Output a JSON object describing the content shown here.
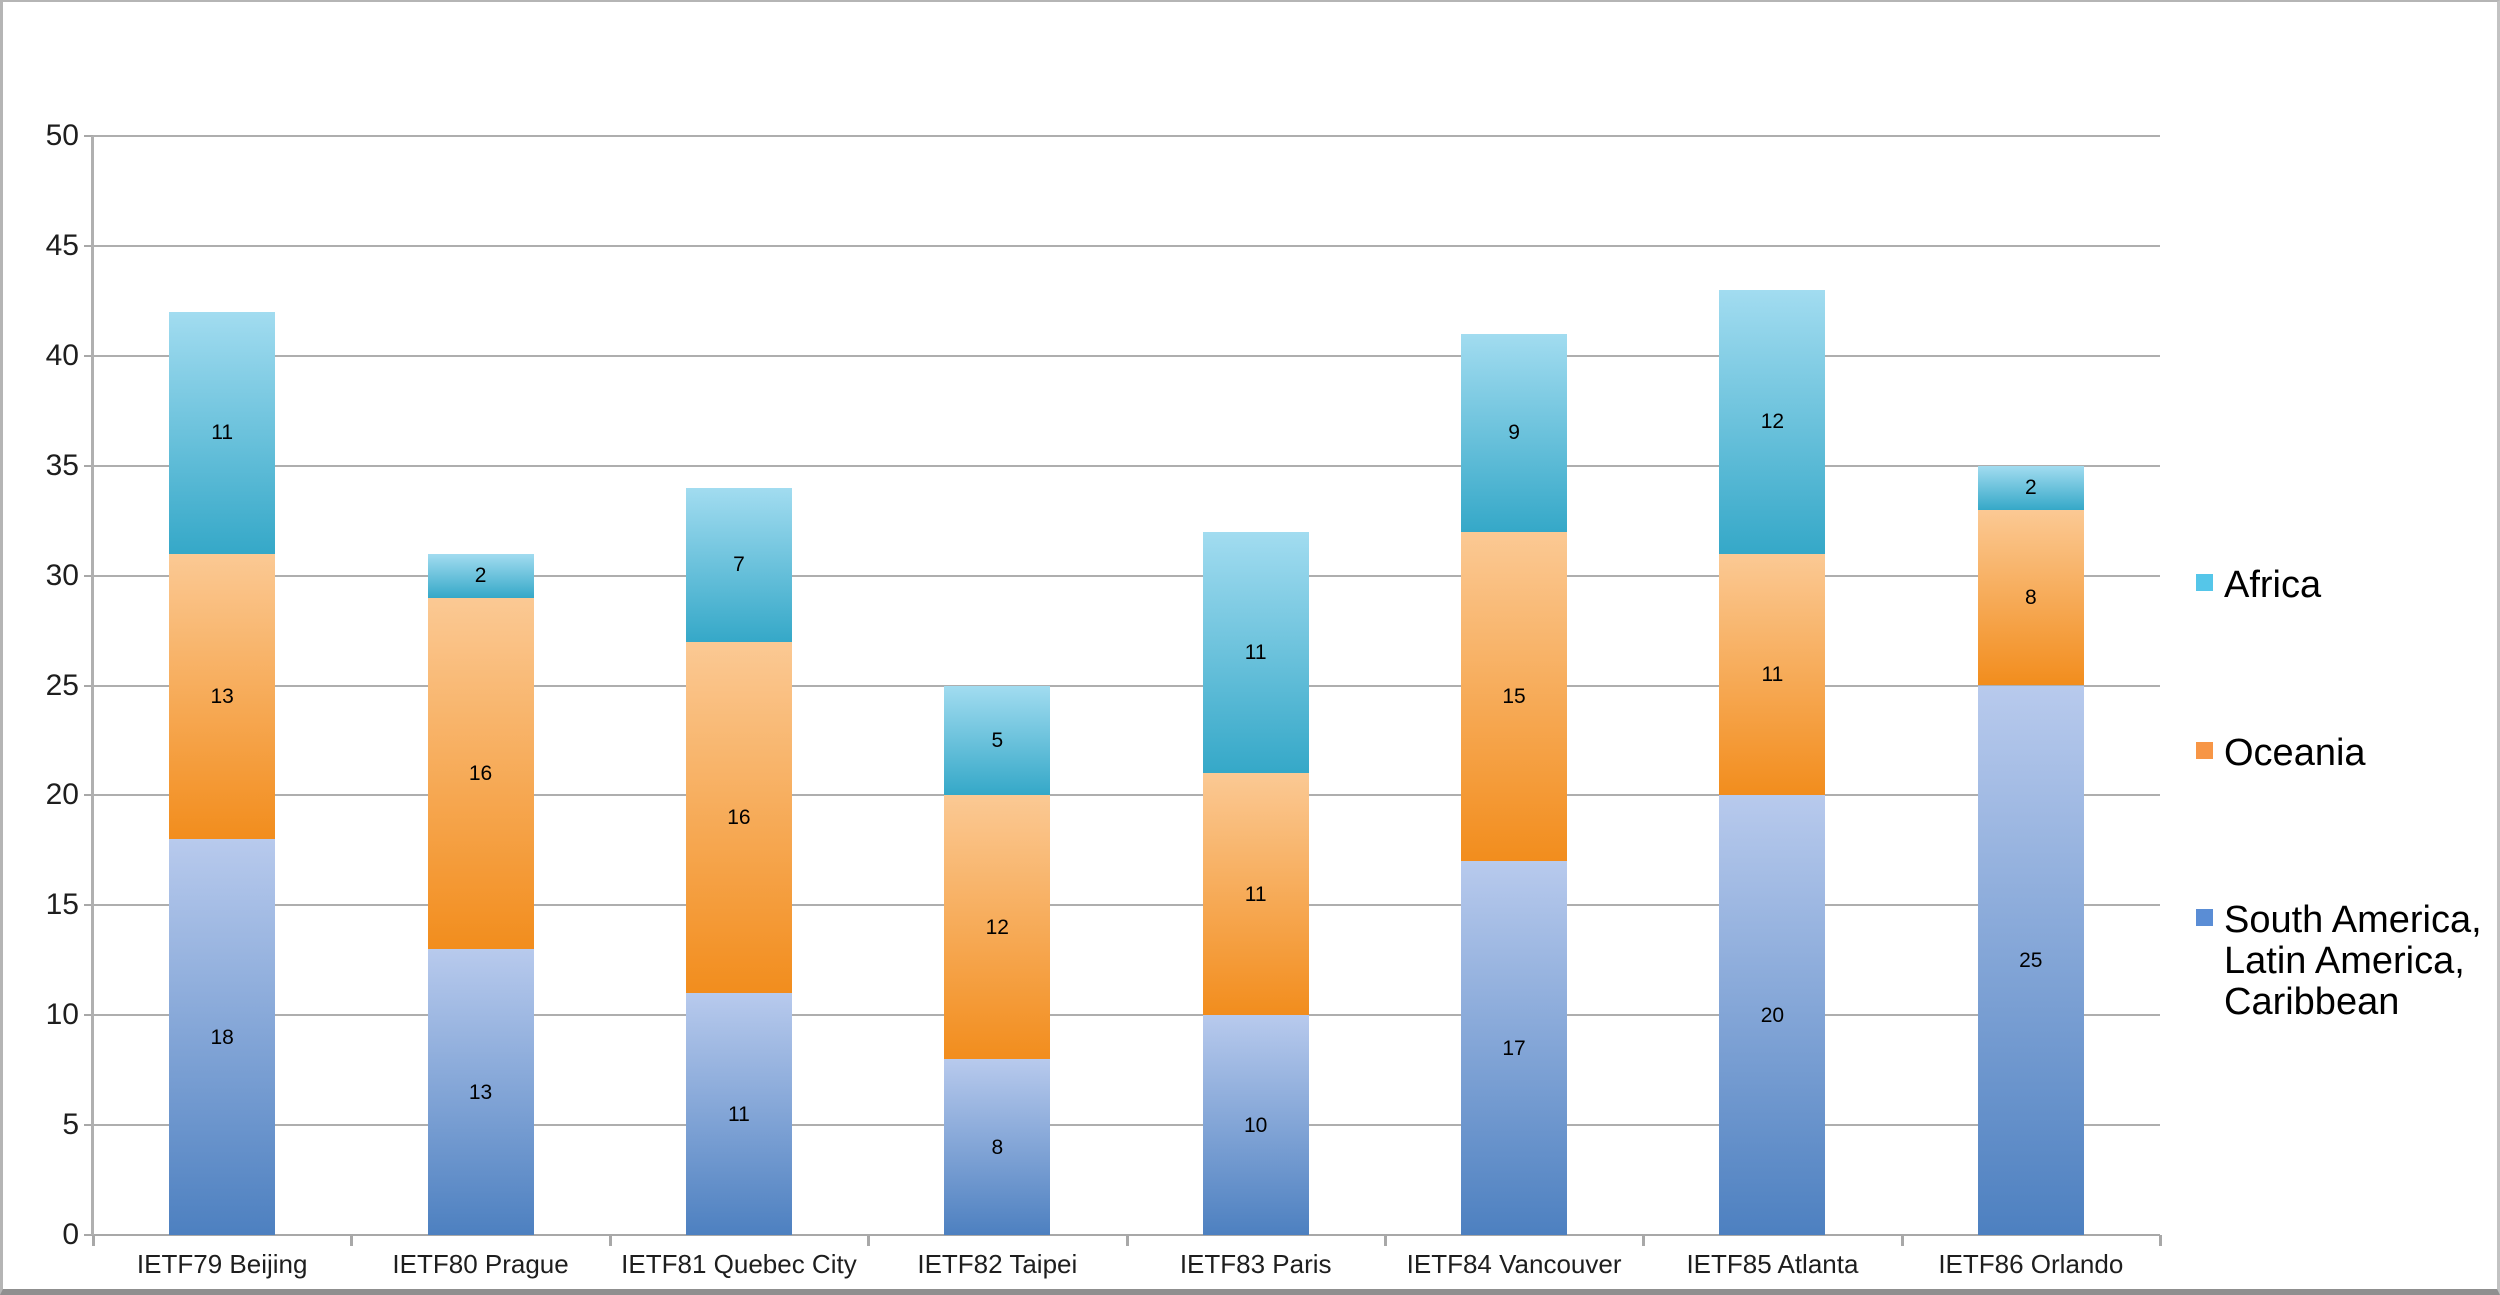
{
  "chart_data": {
    "type": "bar",
    "stacked": true,
    "title": "",
    "categories": [
      "IETF79 Beijing",
      "IETF80 Prague",
      "IETF81 Quebec City",
      "IETF82 Taipei",
      "IETF83 Paris",
      "IETF84 Vancouver",
      "IETF85 Atlanta",
      "IETF86 Orlando"
    ],
    "series": [
      {
        "name": "South America, Latin America, Caribbean",
        "values": [
          18,
          13,
          11,
          8,
          10,
          17,
          20,
          25
        ],
        "gradient_top": "#b8caed",
        "gradient_bottom": "#4d80c0"
      },
      {
        "name": "Oceania",
        "values": [
          13,
          16,
          16,
          12,
          11,
          15,
          11,
          8
        ],
        "gradient_top": "#fbc994",
        "gradient_bottom": "#f28d1d"
      },
      {
        "name": "Africa",
        "values": [
          11,
          2,
          7,
          5,
          11,
          9,
          12,
          2
        ],
        "gradient_top": "#a2dcf0",
        "gradient_bottom": "#35a8c8"
      }
    ],
    "totals": [
      42,
      31,
      34,
      25,
      32,
      41,
      43,
      35
    ],
    "yticks": [
      0,
      5,
      10,
      15,
      20,
      25,
      30,
      35,
      40,
      45,
      50
    ],
    "ylim": [
      0,
      50
    ],
    "grid": true,
    "legend_position": "right",
    "legend_items": [
      {
        "label": "Africa",
        "color": "#55c6e9"
      },
      {
        "label": "Oceania",
        "color": "#f79646"
      },
      {
        "label": "South America,\nLatin America,\nCaribbean",
        "color": "#5a8dd5"
      }
    ]
  },
  "colors": {
    "background": "#ffffff",
    "gridline": "#aeaeae",
    "axis_line": "#b0b0b0",
    "axis_text": "#1e1e1e",
    "data_label": "#000000",
    "frame_border": "#b5b5b5",
    "frame_border_bottom": "#8f8f8f"
  }
}
